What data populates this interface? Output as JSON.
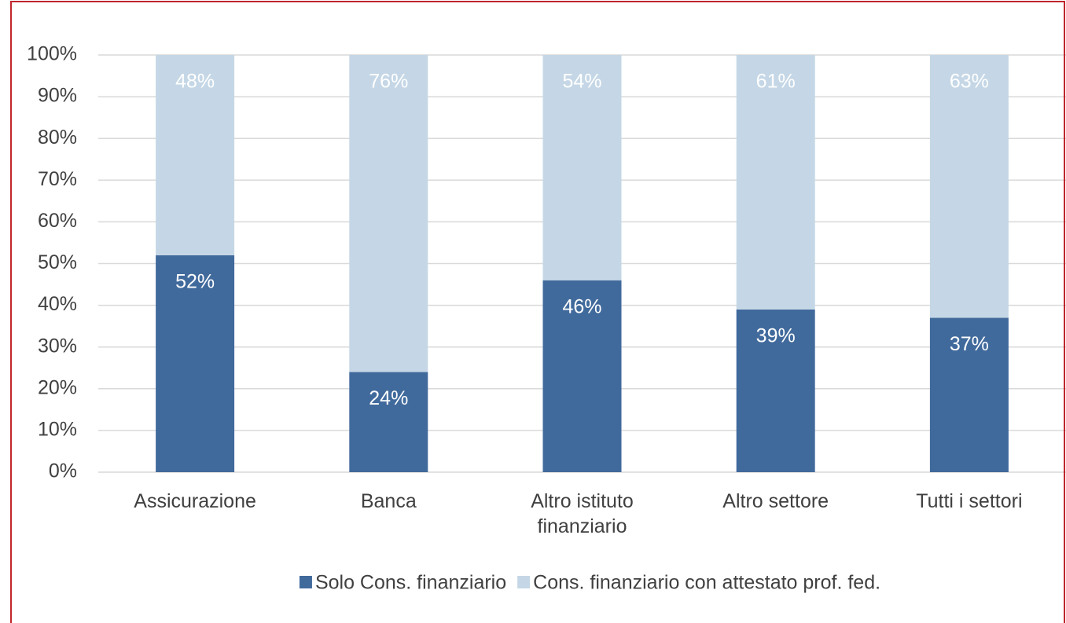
{
  "chart_data": {
    "type": "stacked_bar",
    "categories": [
      "Assicurazione",
      "Banca",
      "Altro istituto finanziario",
      "Altro settore",
      "Tutti i settori"
    ],
    "series": [
      {
        "name": "Solo Cons. finanziario",
        "color": "#416a9c",
        "values": [
          52,
          24,
          46,
          39,
          37
        ],
        "value_labels": [
          "52%",
          "24%",
          "46%",
          "39%",
          "37%"
        ]
      },
      {
        "name": "Cons. finanziario con attestato prof. fed.",
        "color": "#c5d7e6",
        "values": [
          48,
          76,
          54,
          61,
          63
        ],
        "value_labels": [
          "48%",
          "76%",
          "54%",
          "61%",
          "63%"
        ]
      }
    ],
    "ylim": [
      0,
      100
    ],
    "yticks": [
      {
        "value": 0,
        "label": "0%"
      },
      {
        "value": 10,
        "label": "10%"
      },
      {
        "value": 20,
        "label": "20%"
      },
      {
        "value": 30,
        "label": "30%"
      },
      {
        "value": 40,
        "label": "40%"
      },
      {
        "value": 50,
        "label": "50%"
      },
      {
        "value": 60,
        "label": "60%"
      },
      {
        "value": 70,
        "label": "70%"
      },
      {
        "value": 80,
        "label": "80%"
      },
      {
        "value": 90,
        "label": "90%"
      },
      {
        "value": 100,
        "label": "100%"
      }
    ],
    "grid": true,
    "legend": "bottom"
  }
}
